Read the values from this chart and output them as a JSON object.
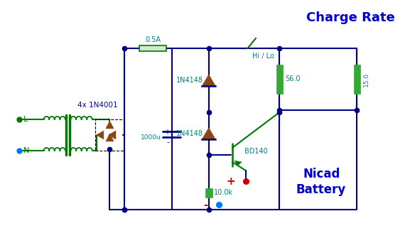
{
  "bg": "#ffffff",
  "wire": "#000080",
  "green": "#007700",
  "teal": "#008080",
  "blue": "#0000cc",
  "red": "#cc0000",
  "brown": "#8B4513",
  "cyan_dot": "#0077ff",
  "comp_green": "#33aa33",
  "fuse_fill": "#cceecc",
  "title": "Charge Rate",
  "sub1": "Nicad",
  "sub2": "Battery",
  "lbl_0p5A": "0.5A",
  "lbl_1N4148a": "1N4148",
  "lbl_1N4148b": "1N4148",
  "lbl_1000u": "1000u",
  "lbl_56": "56.0",
  "lbl_15": "15.0",
  "lbl_10k": "10.0k",
  "lbl_BD140": "BD140",
  "lbl_HiLo": "Hi / Lo",
  "lbl_4x": "4x 1N4001",
  "lbl_L": "L",
  "lbl_N": "N",
  "lbl_plus": "+",
  "lbl_minus": "-"
}
